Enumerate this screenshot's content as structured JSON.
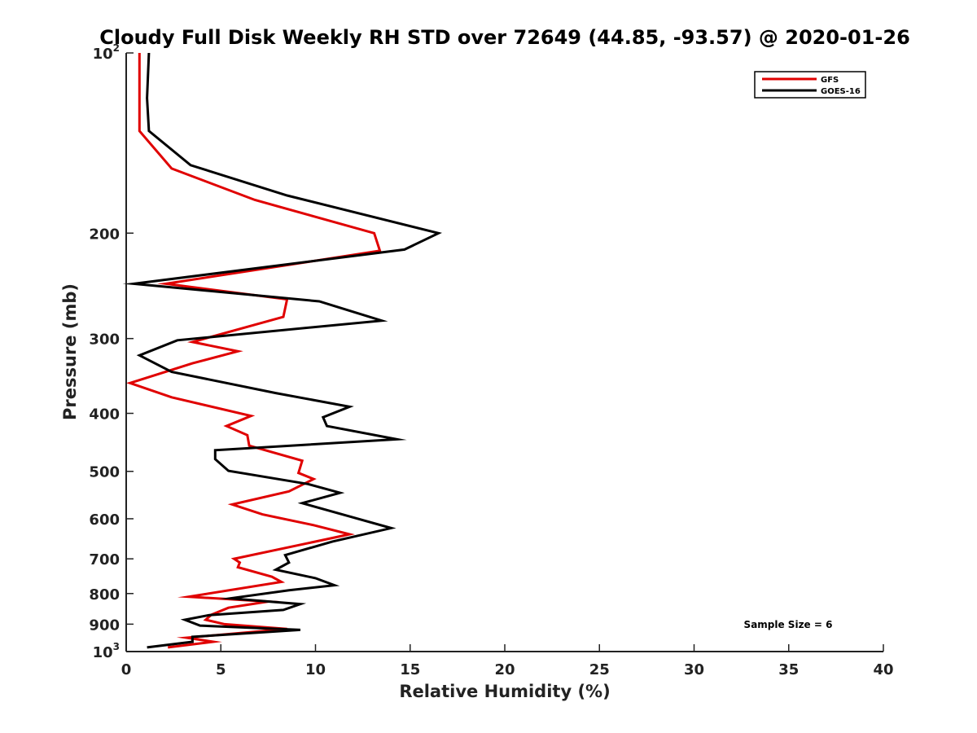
{
  "chart_data": {
    "type": "line",
    "title": "Cloudy Full Disk Weekly RH STD over 72649 (44.85, -93.57) @ 2020-01-26",
    "xlabel": "Relative Humidity (%)",
    "ylabel": "Pressure (mb)",
    "xlim": [
      0,
      40
    ],
    "ylim": [
      100,
      1000
    ],
    "y_scale": "log",
    "y_reversed": true,
    "x_ticks": [
      0,
      5,
      10,
      15,
      20,
      25,
      30,
      35,
      40
    ],
    "y_ticks": [
      {
        "value": 100,
        "base": "10",
        "exp": "2"
      },
      {
        "value": 200,
        "label": "200"
      },
      {
        "value": 300,
        "label": "300"
      },
      {
        "value": 400,
        "label": "400"
      },
      {
        "value": 500,
        "label": "500"
      },
      {
        "value": 600,
        "label": "600"
      },
      {
        "value": 700,
        "label": "700"
      },
      {
        "value": 800,
        "label": "800"
      },
      {
        "value": 900,
        "label": "900"
      },
      {
        "value": 1000,
        "base": "10",
        "exp": "3"
      }
    ],
    "grid": false,
    "legend_position": "top-right",
    "series": [
      {
        "name": "GFS",
        "color": "#e00000",
        "points": [
          [
            0.7,
            100
          ],
          [
            0.7,
            135
          ],
          [
            2.4,
            156
          ],
          [
            6.8,
            176
          ],
          [
            13.1,
            200
          ],
          [
            13.4,
            214
          ],
          [
            2.1,
            243
          ],
          [
            8.5,
            258
          ],
          [
            8.3,
            276
          ],
          [
            3.5,
            304
          ],
          [
            5.9,
            315
          ],
          [
            3.5,
            330
          ],
          [
            0.2,
            356
          ],
          [
            2.4,
            376
          ],
          [
            6.6,
            404
          ],
          [
            5.3,
            420
          ],
          [
            6.4,
            435
          ],
          [
            6.5,
            453
          ],
          [
            9.3,
            480
          ],
          [
            9.1,
            503
          ],
          [
            9.9,
            515
          ],
          [
            8.6,
            540
          ],
          [
            5.6,
            568
          ],
          [
            7.2,
            590
          ],
          [
            9.9,
            615
          ],
          [
            11.8,
            637
          ],
          [
            10.5,
            650
          ],
          [
            5.7,
            700
          ],
          [
            6.0,
            710
          ],
          [
            5.9,
            723
          ],
          [
            7.7,
            750
          ],
          [
            8.2,
            765
          ],
          [
            3.3,
            810
          ],
          [
            7.5,
            825
          ],
          [
            5.4,
            845
          ],
          [
            4.5,
            868
          ],
          [
            4.2,
            885
          ],
          [
            5.2,
            900
          ],
          [
            8.5,
            917
          ],
          [
            3.2,
            948
          ],
          [
            4.6,
            963
          ],
          [
            2.2,
            984
          ]
        ]
      },
      {
        "name": "GOES-16",
        "color": "#000000",
        "points": [
          [
            1.2,
            100
          ],
          [
            1.1,
            119
          ],
          [
            1.2,
            135
          ],
          [
            3.4,
            154
          ],
          [
            8.5,
            173
          ],
          [
            16.5,
            200
          ],
          [
            14.7,
            213
          ],
          [
            0.4,
            243
          ],
          [
            10.2,
            260
          ],
          [
            13.5,
            280
          ],
          [
            2.7,
            302
          ],
          [
            0.7,
            320
          ],
          [
            2.4,
            341
          ],
          [
            7.9,
            370
          ],
          [
            11.8,
            390
          ],
          [
            10.4,
            406
          ],
          [
            10.6,
            420
          ],
          [
            14.3,
            442
          ],
          [
            4.7,
            461
          ],
          [
            4.7,
            477
          ],
          [
            5.4,
            499
          ],
          [
            9.6,
            525
          ],
          [
            11.3,
            543
          ],
          [
            9.3,
            565
          ],
          [
            14.0,
            622
          ],
          [
            10.9,
            655
          ],
          [
            8.4,
            690
          ],
          [
            8.6,
            710
          ],
          [
            7.9,
            730
          ],
          [
            10.0,
            754
          ],
          [
            11.0,
            775
          ],
          [
            8.6,
            790
          ],
          [
            5.5,
            815
          ],
          [
            9.2,
            833
          ],
          [
            8.3,
            852
          ],
          [
            4.4,
            869
          ],
          [
            3.1,
            885
          ],
          [
            3.9,
            905
          ],
          [
            9.2,
            920
          ],
          [
            3.5,
            945
          ],
          [
            3.5,
            963
          ],
          [
            1.1,
            984
          ]
        ]
      }
    ],
    "legend": {
      "entries": [
        "GFS",
        "GOES-16"
      ]
    },
    "annotation": "Sample Size = 6"
  }
}
